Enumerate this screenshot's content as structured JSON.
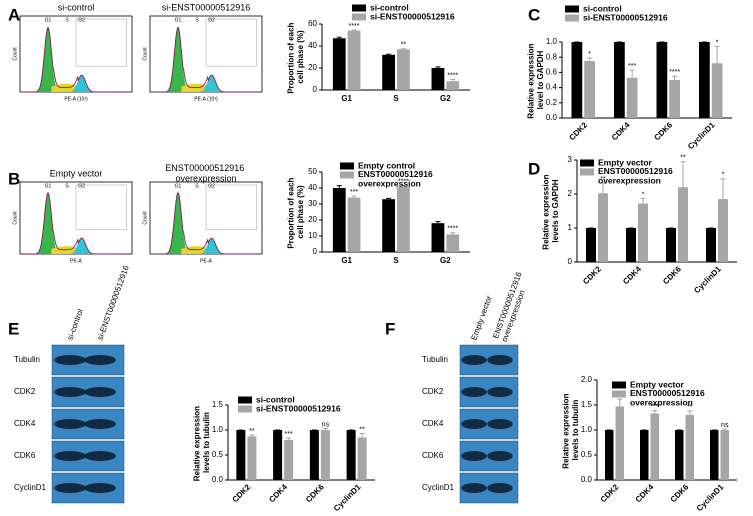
{
  "panel_labels": [
    "A",
    "B",
    "C",
    "D",
    "E",
    "F"
  ],
  "flow_plots": [
    {
      "title": "si-control",
      "gates": [
        "G1",
        "S",
        "G2"
      ],
      "x_label": "PE-A (10³)",
      "y_label": "Count"
    },
    {
      "title": "si-ENST00000512916",
      "gates": [
        "G1",
        "S",
        "G2"
      ],
      "x_label": "PE-A (10³)",
      "y_label": "Count"
    },
    {
      "title": "Empty vector",
      "gates": [
        "G1",
        "S",
        "G2"
      ],
      "x_label": "PE-A",
      "y_label": "Count"
    },
    {
      "title": "ENST00000512916 overexpression",
      "gates": [
        "G1",
        "S",
        "G2"
      ],
      "x_label": "PE-A",
      "y_label": "Count"
    }
  ],
  "blots": [
    {
      "lanes": [
        "si-control",
        "si-ENST00000512916"
      ],
      "rows": [
        "Tubulin",
        "CDK2",
        "CDK4",
        "CDK6",
        "CyclinD1"
      ]
    },
    {
      "lanes": [
        "Empty vector",
        "ENST00000512916 overexpression"
      ],
      "rows": [
        "Tubulin",
        "CDK2",
        "CDK4",
        "CDK6",
        "CyclinD1"
      ]
    }
  ],
  "chart_data": [
    {
      "type": "bar",
      "y_label": "Proportion of each cell phase (%)",
      "categories": [
        "G1",
        "S",
        "G2"
      ],
      "series": [
        {
          "name": "si-control",
          "color": "#000000",
          "values": [
            47,
            32,
            20
          ],
          "errors": [
            1,
            0.5,
            1
          ]
        },
        {
          "name": "si-ENST00000512916",
          "color": "#a6a6a6",
          "values": [
            54,
            37,
            8
          ],
          "errors": [
            0.5,
            0.5,
            1.5
          ],
          "annotations": [
            "****",
            "**",
            "****"
          ]
        }
      ],
      "ylim": [
        0,
        60
      ],
      "yticks": [
        0,
        20,
        40,
        60
      ],
      "legend": "top"
    },
    {
      "type": "bar",
      "y_label": "Proportion of each cell phase (%)",
      "categories": [
        "G1",
        "S",
        "G2"
      ],
      "series": [
        {
          "name": "Empty control",
          "color": "#000000",
          "values": [
            40,
            33,
            18
          ],
          "errors": [
            1.5,
            0.5,
            1
          ]
        },
        {
          "name": "ENST00000512916 overexpression",
          "color": "#a6a6a6",
          "values": [
            34,
            41,
            11
          ],
          "errors": [
            1,
            0.5,
            1
          ],
          "annotations": [
            "***",
            "****",
            "****"
          ]
        }
      ],
      "ylim": [
        0,
        50
      ],
      "yticks": [
        0,
        10,
        20,
        30,
        40,
        50
      ],
      "legend": "top"
    },
    {
      "type": "bar",
      "y_label": "Relative expression level to GAPDH",
      "categories": [
        "CDK2",
        "CDK4",
        "CDK6",
        "CyclinD1"
      ],
      "series": [
        {
          "name": "si-control",
          "color": "#000000",
          "values": [
            1,
            1,
            1,
            1
          ],
          "errors": [
            0,
            0,
            0,
            0
          ]
        },
        {
          "name": "si-ENST00000512916",
          "color": "#a6a6a6",
          "values": [
            0.75,
            0.53,
            0.5,
            0.72
          ],
          "errors": [
            0.04,
            0.1,
            0.05,
            0.22
          ],
          "annotations": [
            "*",
            "***",
            "****",
            "*"
          ]
        }
      ],
      "ylim": [
        0,
        1
      ],
      "yticks": [
        {
          "value": 0,
          "label": "0.0"
        },
        {
          "value": 0.2,
          "label": "0.2"
        },
        {
          "value": 0.4,
          "label": "0.4"
        },
        {
          "value": 0.6,
          "label": "0.6"
        },
        {
          "value": 0.8,
          "label": "0.8"
        },
        {
          "value": 1,
          "label": "1.0"
        }
      ],
      "legend": "top"
    },
    {
      "type": "bar",
      "y_label": "Relative expression levels to GAPDH",
      "categories": [
        "CDK2",
        "CDK4",
        "CDK6",
        "CyclinD1"
      ],
      "series": [
        {
          "name": "Empty vector",
          "color": "#000000",
          "values": [
            1,
            1,
            1,
            1
          ],
          "errors": [
            0,
            0,
            0,
            0
          ]
        },
        {
          "name": "ENST00000512916 overexpression",
          "color": "#a6a6a6",
          "values": [
            2.02,
            1.72,
            2.2,
            1.85
          ],
          "errors": [
            0.3,
            0.15,
            0.75,
            0.6
          ],
          "annotations": [
            "**",
            "*",
            "**",
            "*"
          ]
        }
      ],
      "ylim": [
        0,
        3
      ],
      "yticks": [
        0,
        1,
        2,
        3
      ],
      "legend": "top"
    },
    {
      "type": "bar",
      "y_label": "Relative expression levels to tubulin",
      "categories": [
        "CDK2",
        "CDK4",
        "CDK6",
        "CyclinD1"
      ],
      "series": [
        {
          "name": "si-control",
          "color": "#000000",
          "values": [
            1,
            1,
            1,
            1
          ],
          "errors": [
            0,
            0,
            0,
            0
          ]
        },
        {
          "name": "si-ENST00000512916",
          "color": "#a6a6a6",
          "values": [
            0.87,
            0.8,
            1.0,
            0.85
          ],
          "errors": [
            0.03,
            0.04,
            0.03,
            0.08
          ],
          "annotations": [
            "**",
            "***",
            "ns",
            "**"
          ]
        }
      ],
      "ylim": [
        0,
        1.5
      ],
      "yticks": [
        {
          "value": 0,
          "label": "0.0"
        },
        {
          "value": 0.5,
          "label": "0.5"
        },
        {
          "value": 1,
          "label": "1.0"
        },
        1.5
      ],
      "legend": "top"
    },
    {
      "type": "bar",
      "y_label": "Relative expression levels to tubulin",
      "categories": [
        "CDK2",
        "CDK4",
        "CDK6",
        "CyclinD1"
      ],
      "series": [
        {
          "name": "Empty vector",
          "color": "#000000",
          "values": [
            1,
            1,
            1,
            1
          ],
          "errors": [
            0,
            0,
            0,
            0
          ]
        },
        {
          "name": "ENST00000512916 overexpression",
          "color": "#a6a6a6",
          "values": [
            1.47,
            1.33,
            1.3,
            1.0
          ],
          "errors": [
            0.15,
            0.06,
            0.08,
            0.02
          ],
          "annotations": [
            "****",
            "***",
            "**",
            "ns"
          ]
        }
      ],
      "ylim": [
        0,
        2
      ],
      "yticks": [
        {
          "value": 0,
          "label": "0.0"
        },
        {
          "value": 0.5,
          "label": "0.5"
        },
        {
          "value": 1,
          "label": "1.0"
        },
        1.5,
        {
          "value": 2,
          "label": "2.0"
        }
      ],
      "legend": "top"
    }
  ]
}
